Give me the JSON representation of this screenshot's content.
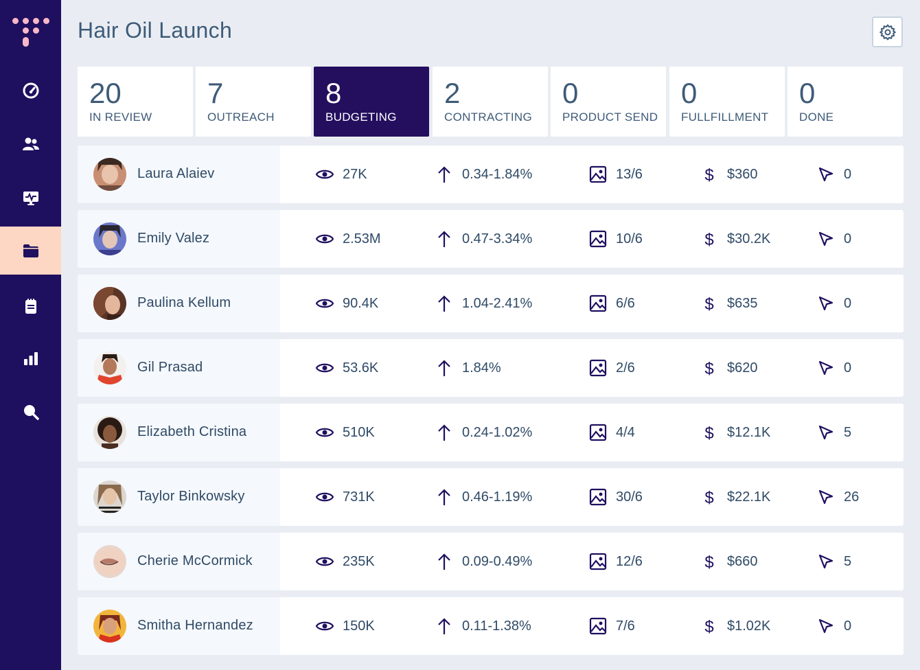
{
  "header": {
    "title": "Hair Oil Launch",
    "settings_icon": "gear-icon"
  },
  "colors": {
    "sidebar": "#1f0f5f",
    "active_nav": "#fdd6c4",
    "active_stage": "#240e5e",
    "logo": "#f7b8c8",
    "text": "#3e5b78"
  },
  "sidebar": {
    "items": [
      {
        "icon": "dashboard-gauge-icon",
        "active": false
      },
      {
        "icon": "users-icon",
        "active": false
      },
      {
        "icon": "monitor-pulse-icon",
        "active": false
      },
      {
        "icon": "folder-icon",
        "active": true
      },
      {
        "icon": "clipboard-icon",
        "active": false
      },
      {
        "icon": "bar-chart-icon",
        "active": false
      },
      {
        "icon": "search-icon",
        "active": false
      }
    ]
  },
  "stages": [
    {
      "count": "20",
      "label": "IN REVIEW",
      "active": false
    },
    {
      "count": "7",
      "label": "OUTREACH",
      "active": false
    },
    {
      "count": "8",
      "label": "BUDGETING",
      "active": true
    },
    {
      "count": "2",
      "label": "CONTRACTING",
      "active": false
    },
    {
      "count": "0",
      "label": "PRODUCT SEND",
      "active": false
    },
    {
      "count": "0",
      "label": "FULLFILLMENT",
      "active": false
    },
    {
      "count": "0",
      "label": "DONE",
      "active": false
    }
  ],
  "influencers": [
    {
      "name": "Laura Alaiev",
      "views": "27K",
      "engagement": "0.34-1.84%",
      "posts": "13/6",
      "budget": "$360",
      "clicks": "0"
    },
    {
      "name": "Emily Valez",
      "views": "2.53M",
      "engagement": "0.47-3.34%",
      "posts": "10/6",
      "budget": "$30.2K",
      "clicks": "0"
    },
    {
      "name": "Paulina Kellum",
      "views": "90.4K",
      "engagement": "1.04-2.41%",
      "posts": "6/6",
      "budget": "$635",
      "clicks": "0"
    },
    {
      "name": "Gil Prasad",
      "views": "53.6K",
      "engagement": "1.84%",
      "posts": "2/6",
      "budget": "$620",
      "clicks": "0"
    },
    {
      "name": "Elizabeth Cristina",
      "views": "510K",
      "engagement": "0.24-1.02%",
      "posts": "4/4",
      "budget": "$12.1K",
      "clicks": "5"
    },
    {
      "name": "Taylor Binkowsky",
      "views": "731K",
      "engagement": "0.46-1.19%",
      "posts": "30/6",
      "budget": "$22.1K",
      "clicks": "26"
    },
    {
      "name": "Cherie McCormick",
      "views": "235K",
      "engagement": "0.09-0.49%",
      "posts": "12/6",
      "budget": "$660",
      "clicks": "5"
    },
    {
      "name": "Smitha Hernandez",
      "views": "150K",
      "engagement": "0.11-1.38%",
      "posts": "7/6",
      "budget": "$1.02K",
      "clicks": "0"
    }
  ]
}
